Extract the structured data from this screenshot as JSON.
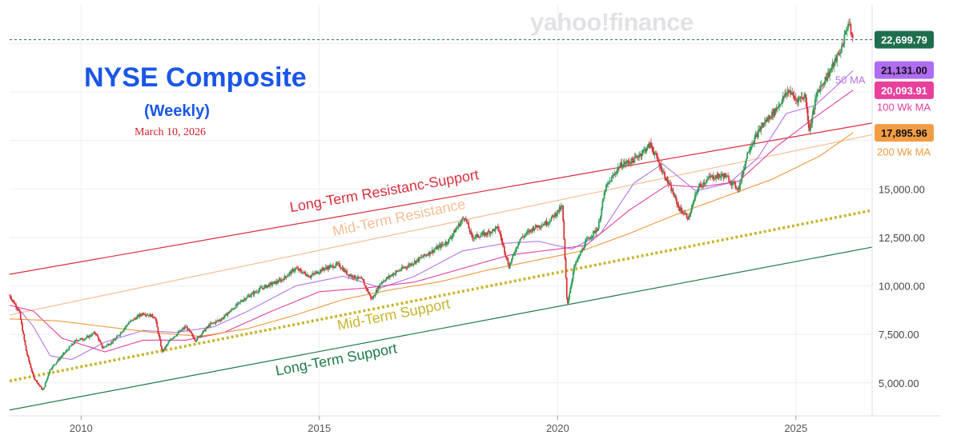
{
  "header": {
    "title": "NYSE Composite",
    "subtitle": "(Weekly)",
    "date": "March 10, 2026",
    "brand": "yahoo!finance"
  },
  "chart_data": {
    "type": "line",
    "x_range": [
      2008.5,
      2026.6
    ],
    "ylim": [
      3300,
      24500
    ],
    "grid": true,
    "x_ticks": [
      {
        "value": 2010,
        "label": "2010"
      },
      {
        "value": 2015,
        "label": "2015"
      },
      {
        "value": 2020,
        "label": "2020"
      },
      {
        "value": 2025,
        "label": "2025"
      }
    ],
    "y_ticks": [
      {
        "value": 5000,
        "label": "5,000.00"
      },
      {
        "value": 7500,
        "label": "7,500.00"
      },
      {
        "value": 10000,
        "label": "10,000.00"
      },
      {
        "value": 12500,
        "label": "12,500.00"
      },
      {
        "value": 15000,
        "label": "15,000.00"
      }
    ],
    "colors": {
      "candle_up": "#2e9e5a",
      "candle_down": "#d9343a",
      "ma50": "#b473e8",
      "ma100": "#e0409a",
      "ma200": "#f0983a",
      "long_term_resistance": "#d62e3c",
      "mid_term_resistance": "#f5bf95",
      "mid_term_support": "#c8b42c",
      "long_term_support": "#1e7a46"
    },
    "price_series": {
      "name": "NYSE Composite",
      "points": [
        [
          2008.5,
          9500
        ],
        [
          2008.7,
          8700
        ],
        [
          2008.85,
          6600
        ],
        [
          2009.0,
          5300
        ],
        [
          2009.2,
          4600
        ],
        [
          2009.35,
          5700
        ],
        [
          2009.6,
          6400
        ],
        [
          2009.9,
          7200
        ],
        [
          2010.1,
          7300
        ],
        [
          2010.3,
          7600
        ],
        [
          2010.45,
          6800
        ],
        [
          2010.7,
          7200
        ],
        [
          2011.0,
          8100
        ],
        [
          2011.3,
          8600
        ],
        [
          2011.55,
          8400
        ],
        [
          2011.7,
          6600
        ],
        [
          2011.9,
          7300
        ],
        [
          2012.2,
          7900
        ],
        [
          2012.4,
          7200
        ],
        [
          2012.7,
          8000
        ],
        [
          2012.95,
          8300
        ],
        [
          2013.4,
          9300
        ],
        [
          2013.8,
          9900
        ],
        [
          2014.2,
          10300
        ],
        [
          2014.5,
          10900
        ],
        [
          2014.8,
          10500
        ],
        [
          2015.1,
          10900
        ],
        [
          2015.4,
          11100
        ],
        [
          2015.6,
          10600
        ],
        [
          2015.9,
          10300
        ],
        [
          2016.1,
          9300
        ],
        [
          2016.3,
          10200
        ],
        [
          2016.6,
          10700
        ],
        [
          2016.9,
          11100
        ],
        [
          2017.3,
          11700
        ],
        [
          2017.7,
          12300
        ],
        [
          2018.05,
          13600
        ],
        [
          2018.2,
          12500
        ],
        [
          2018.5,
          12700
        ],
        [
          2018.75,
          13000
        ],
        [
          2018.98,
          11000
        ],
        [
          2019.2,
          12400
        ],
        [
          2019.5,
          13000
        ],
        [
          2019.8,
          13300
        ],
        [
          2020.1,
          14100
        ],
        [
          2020.2,
          9000
        ],
        [
          2020.35,
          11000
        ],
        [
          2020.6,
          12300
        ],
        [
          2020.85,
          13000
        ],
        [
          2021.0,
          15000
        ],
        [
          2021.3,
          16200
        ],
        [
          2021.6,
          16500
        ],
        [
          2021.95,
          17300
        ],
        [
          2022.15,
          16200
        ],
        [
          2022.4,
          14900
        ],
        [
          2022.55,
          14000
        ],
        [
          2022.75,
          13500
        ],
        [
          2022.95,
          15100
        ],
        [
          2023.2,
          15600
        ],
        [
          2023.5,
          15700
        ],
        [
          2023.8,
          15000
        ],
        [
          2024.0,
          17000
        ],
        [
          2024.3,
          18300
        ],
        [
          2024.55,
          19000
        ],
        [
          2024.85,
          20100
        ],
        [
          2025.0,
          19600
        ],
        [
          2025.2,
          19800
        ],
        [
          2025.28,
          18000
        ],
        [
          2025.45,
          20000
        ],
        [
          2025.7,
          21000
        ],
        [
          2025.95,
          22200
        ],
        [
          2026.1,
          23600
        ],
        [
          2026.2,
          22700
        ]
      ]
    },
    "moving_averages": [
      {
        "name": "50 MA",
        "points": [
          [
            2008.5,
            9400
          ],
          [
            2009.0,
            7900
          ],
          [
            2009.35,
            6400
          ],
          [
            2009.8,
            6200
          ],
          [
            2010.5,
            7100
          ],
          [
            2011.3,
            7700
          ],
          [
            2012.0,
            7600
          ],
          [
            2012.8,
            7900
          ],
          [
            2013.5,
            8700
          ],
          [
            2014.5,
            10000
          ],
          [
            2015.5,
            10500
          ],
          [
            2016.3,
            9900
          ],
          [
            2017.0,
            10500
          ],
          [
            2018.0,
            11800
          ],
          [
            2018.9,
            12200
          ],
          [
            2019.6,
            12300
          ],
          [
            2020.3,
            11900
          ],
          [
            2020.9,
            12700
          ],
          [
            2021.6,
            15300
          ],
          [
            2022.2,
            16300
          ],
          [
            2022.9,
            14900
          ],
          [
            2023.6,
            15300
          ],
          [
            2024.2,
            16600
          ],
          [
            2024.8,
            18900
          ],
          [
            2025.4,
            19300
          ],
          [
            2026.2,
            21100
          ]
        ]
      },
      {
        "name": "100 Wk MA",
        "points": [
          [
            2008.5,
            9000
          ],
          [
            2009.0,
            8700
          ],
          [
            2009.6,
            7300
          ],
          [
            2010.5,
            6600
          ],
          [
            2011.3,
            7200
          ],
          [
            2012.2,
            7200
          ],
          [
            2013.0,
            7600
          ],
          [
            2014.0,
            8700
          ],
          [
            2015.0,
            9700
          ],
          [
            2016.0,
            9900
          ],
          [
            2017.0,
            10200
          ],
          [
            2018.0,
            10900
          ],
          [
            2019.0,
            11600
          ],
          [
            2020.0,
            11900
          ],
          [
            2020.6,
            12100
          ],
          [
            2021.5,
            13900
          ],
          [
            2022.3,
            15200
          ],
          [
            2023.0,
            15100
          ],
          [
            2023.8,
            15400
          ],
          [
            2024.6,
            17200
          ],
          [
            2025.4,
            18700
          ],
          [
            2026.2,
            20100
          ]
        ]
      },
      {
        "name": "200 Wk MA",
        "points": [
          [
            2008.5,
            8300
          ],
          [
            2009.5,
            8200
          ],
          [
            2010.5,
            7900
          ],
          [
            2011.5,
            7600
          ],
          [
            2012.5,
            7400
          ],
          [
            2013.5,
            7800
          ],
          [
            2014.5,
            8500
          ],
          [
            2015.5,
            9300
          ],
          [
            2016.5,
            9800
          ],
          [
            2017.5,
            10200
          ],
          [
            2018.5,
            10800
          ],
          [
            2019.5,
            11300
          ],
          [
            2020.5,
            11800
          ],
          [
            2021.5,
            12700
          ],
          [
            2022.5,
            13700
          ],
          [
            2023.5,
            14600
          ],
          [
            2024.5,
            15500
          ],
          [
            2025.5,
            16700
          ],
          [
            2026.2,
            17900
          ]
        ]
      }
    ],
    "trend_lines": [
      {
        "name": "Long-Term Resistanc-Support",
        "start": [
          2008.5,
          10600
        ],
        "end": [
          2026.6,
          18400
        ]
      },
      {
        "name": "Mid-Term Resistance",
        "start": [
          2008.5,
          8500
        ],
        "end": [
          2026.6,
          17800
        ]
      },
      {
        "name": "Mid-Term Support",
        "start": [
          2008.5,
          5100
        ],
        "end": [
          2026.6,
          13900
        ]
      },
      {
        "name": "Long-Term Support",
        "start": [
          2008.5,
          3600
        ],
        "end": [
          2026.6,
          12000
        ]
      }
    ],
    "price_labels": [
      {
        "text": "22,699.79",
        "value": 22699.79,
        "color": "#1e6e4e",
        "line": true
      },
      {
        "text": "21,131.00",
        "value": 21131.0,
        "color": "#b06cf5"
      },
      {
        "text": "20,093.91",
        "value": 20093.91,
        "color": "#e8409c"
      },
      {
        "text": "17,895.96",
        "value": 17895.96,
        "color": "#f29d45"
      }
    ],
    "ma_labels": [
      {
        "text": "50 MA",
        "color": "#b473e8",
        "value": 20600
      },
      {
        "text": "100 Wk MA",
        "color": "#e0409a",
        "value": 19200
      },
      {
        "text": "200 Wk MA",
        "color": "#f0983a",
        "value": 16900
      }
    ]
  }
}
